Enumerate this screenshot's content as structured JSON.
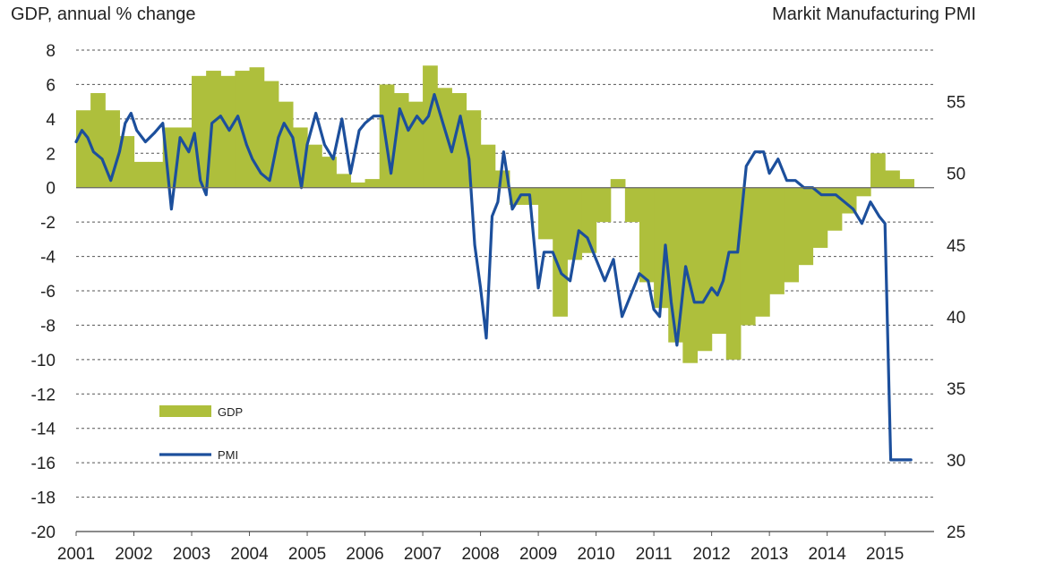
{
  "chart_data": {
    "type": "area",
    "title": "",
    "left_axis_title": "GDP, annual % change",
    "right_axis_title": "Markit Manufacturing PMI",
    "x_tick_labels": [
      "2001",
      "2002",
      "2003",
      "2004",
      "2005",
      "2006",
      "2007",
      "2008",
      "2009",
      "2010",
      "2011",
      "2012",
      "2013",
      "2014",
      "2015"
    ],
    "left_ylim": [
      -20,
      8
    ],
    "left_ticks": [
      8,
      6,
      4,
      2,
      0,
      -2,
      -4,
      -6,
      -8,
      -10,
      -12,
      -14,
      -16,
      -18,
      -20
    ],
    "left_tick_labels": [
      "8",
      "6",
      "4",
      "2",
      "0",
      "-2",
      "-4",
      "-6",
      "-8",
      "-10",
      "-12",
      "-14",
      "-16",
      "-18",
      "-20"
    ],
    "right_ylim": [
      25,
      58.6
    ],
    "right_ticks": [
      55,
      50,
      45,
      40,
      35,
      30,
      25
    ],
    "right_tick_labels": [
      "55",
      "50",
      "45",
      "40",
      "35",
      "30",
      "25"
    ],
    "grid": "dashed horizontal",
    "legend_placement": "lower-left",
    "series": [
      {
        "name": "GDP",
        "kind": "area",
        "axis": "left",
        "color": "#aebf3c",
        "x": [
          2001.0,
          2001.25,
          2001.5,
          2001.75,
          2002.0,
          2002.25,
          2002.5,
          2002.75,
          2003.0,
          2003.25,
          2003.5,
          2003.75,
          2004.0,
          2004.25,
          2004.5,
          2004.75,
          2005.0,
          2005.25,
          2005.5,
          2005.75,
          2006.0,
          2006.25,
          2006.5,
          2006.75,
          2007.0,
          2007.25,
          2007.5,
          2007.75,
          2008.0,
          2008.25,
          2008.5,
          2008.75,
          2009.0,
          2009.25,
          2009.5,
          2009.75,
          2010.0,
          2010.25,
          2010.5,
          2010.75,
          2011.0,
          2011.25,
          2011.5,
          2011.75,
          2012.0,
          2012.25,
          2012.5,
          2012.75,
          2013.0,
          2013.25,
          2013.5,
          2013.75,
          2014.0,
          2014.25,
          2014.5,
          2014.75,
          2015.0,
          2015.25
        ],
        "values": [
          4.5,
          5.5,
          4.5,
          3.0,
          1.5,
          1.5,
          3.5,
          3.5,
          6.5,
          6.8,
          6.5,
          6.8,
          7.0,
          6.2,
          5.0,
          3.5,
          2.5,
          1.8,
          0.8,
          0.3,
          0.5,
          6.0,
          5.5,
          5.0,
          7.1,
          5.8,
          5.5,
          4.5,
          2.5,
          1.0,
          -1.0,
          -1.0,
          -3.0,
          -7.5,
          -4.2,
          -3.8,
          -2.0,
          0.5,
          -2.0,
          -5.5,
          -7.0,
          -9.0,
          -10.2,
          -9.5,
          -8.5,
          -10.0,
          -8.0,
          -7.5,
          -6.2,
          -5.5,
          -4.5,
          -3.5,
          -2.5,
          -1.5,
          -0.5,
          2.0,
          1.0,
          0.5
        ]
      },
      {
        "name": "PMI",
        "kind": "line",
        "axis": "right",
        "color": "#1c4f9c",
        "x": [
          2001.0,
          2001.1,
          2001.2,
          2001.3,
          2001.45,
          2001.6,
          2001.75,
          2001.85,
          2001.95,
          2002.05,
          2002.2,
          2002.35,
          2002.5,
          2002.65,
          2002.8,
          2002.95,
          2003.05,
          2003.15,
          2003.25,
          2003.35,
          2003.5,
          2003.65,
          2003.8,
          2003.95,
          2004.05,
          2004.2,
          2004.35,
          2004.5,
          2004.6,
          2004.75,
          2004.9,
          2005.0,
          2005.15,
          2005.3,
          2005.45,
          2005.6,
          2005.75,
          2005.9,
          2006.0,
          2006.15,
          2006.3,
          2006.45,
          2006.6,
          2006.75,
          2006.9,
          2007.0,
          2007.1,
          2007.2,
          2007.35,
          2007.5,
          2007.65,
          2007.8,
          2007.9,
          2008.0,
          2008.1,
          2008.2,
          2008.3,
          2008.4,
          2008.55,
          2008.7,
          2008.85,
          2009.0,
          2009.1,
          2009.25,
          2009.4,
          2009.55,
          2009.7,
          2009.85,
          2010.0,
          2010.15,
          2010.3,
          2010.45,
          2010.6,
          2010.75,
          2010.9,
          2011.0,
          2011.1,
          2011.2,
          2011.3,
          2011.4,
          2011.55,
          2011.7,
          2011.85,
          2012.0,
          2012.1,
          2012.2,
          2012.3,
          2012.45,
          2012.6,
          2012.75,
          2012.9,
          2013.0,
          2013.15,
          2013.3,
          2013.45,
          2013.6,
          2013.75,
          2013.9,
          2014.0,
          2014.15,
          2014.3,
          2014.45,
          2014.6,
          2014.75,
          2014.9,
          2015.0,
          2015.1,
          2015.2,
          2015.3,
          2015.38,
          2015.45
        ],
        "values": [
          52.2,
          53.0,
          52.5,
          51.5,
          51.0,
          49.5,
          51.5,
          53.5,
          54.2,
          53.0,
          52.2,
          52.8,
          53.5,
          47.5,
          52.5,
          51.5,
          52.8,
          49.5,
          48.5,
          53.5,
          54.0,
          53.0,
          54.0,
          52.0,
          51.0,
          50.0,
          49.5,
          52.5,
          53.5,
          52.5,
          49.0,
          52.0,
          54.2,
          52.0,
          51.0,
          53.8,
          50.0,
          53.0,
          53.5,
          54.0,
          54.0,
          50.0,
          54.5,
          53.0,
          54.0,
          53.5,
          54.0,
          55.5,
          53.5,
          51.5,
          54.0,
          51.0,
          45.0,
          42.0,
          38.5,
          47.0,
          48.0,
          51.5,
          47.5,
          48.5,
          48.5,
          42.0,
          44.5,
          44.5,
          43.0,
          42.5,
          46.0,
          45.5,
          44.0,
          42.5,
          44.0,
          40.0,
          41.5,
          43.0,
          42.5,
          40.5,
          40.0,
          45.0,
          41.0,
          38.0,
          43.5,
          41.0,
          41.0,
          42.0,
          41.5,
          42.5,
          44.5,
          44.5,
          50.5,
          51.5,
          51.5,
          50.0,
          51.0,
          49.5,
          49.5,
          49.0,
          49.0,
          48.5,
          48.5,
          48.5,
          48.0,
          47.5,
          46.5,
          48.0,
          47.0,
          46.5,
          30.0,
          30.0,
          30.0,
          30.0,
          30.0
        ]
      }
    ]
  }
}
